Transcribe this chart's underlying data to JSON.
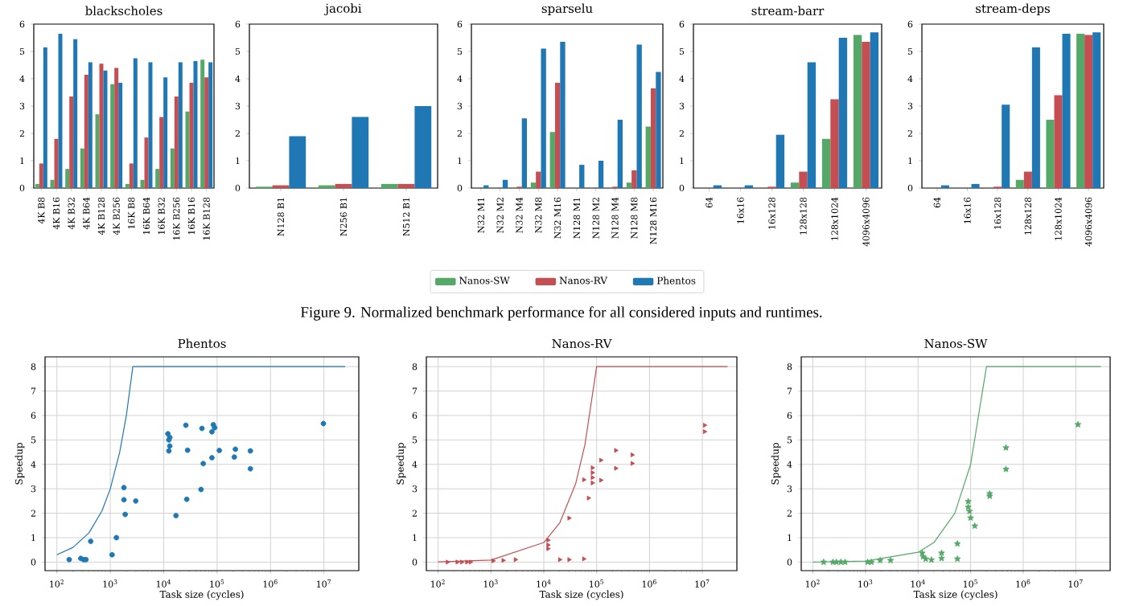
{
  "chart_data": [
    {
      "type": "bar",
      "title": "blackscholes",
      "categories": [
        "4K B8",
        "4K B16",
        "4K B32",
        "4K B64",
        "4K B128",
        "4K B256",
        "16K B8",
        "16K B64",
        "16K B32",
        "16K B256",
        "16K B16",
        "16K B128"
      ],
      "ylim": [
        0,
        6
      ],
      "yticks": [
        0,
        1,
        2,
        3,
        4,
        5,
        6
      ],
      "series": [
        {
          "color": "#55a868",
          "values": [
            0.15,
            0.3,
            0.7,
            1.45,
            2.7,
            3.8,
            0.15,
            0.3,
            0.7,
            1.45,
            2.8,
            4.7
          ]
        },
        {
          "color": "#c44e52",
          "values": [
            0.9,
            1.8,
            3.35,
            4.15,
            4.55,
            4.4,
            0.9,
            1.85,
            2.6,
            3.35,
            3.85,
            4.05
          ]
        },
        {
          "color": "#1f77b4",
          "values": [
            5.15,
            5.65,
            5.45,
            4.6,
            4.3,
            3.85,
            4.75,
            4.6,
            4.05,
            4.6,
            4.65,
            4.6
          ]
        }
      ]
    },
    {
      "type": "bar",
      "title": "jacobi",
      "categories": [
        "N128 B1",
        "N256 B1",
        "N512 B1"
      ],
      "ylim": [
        0,
        6
      ],
      "yticks": [
        0,
        1,
        2,
        3,
        4,
        5,
        6
      ],
      "series": [
        {
          "color": "#55a868",
          "values": [
            0.05,
            0.1,
            0.15
          ]
        },
        {
          "color": "#c44e52",
          "values": [
            0.1,
            0.15,
            0.15
          ]
        },
        {
          "color": "#1f77b4",
          "values": [
            1.9,
            2.6,
            3.0
          ]
        }
      ]
    },
    {
      "type": "bar",
      "title": "sparselu",
      "categories": [
        "N32 M1",
        "N32 M2",
        "N32 M4",
        "N32 M8",
        "N32 M16",
        "N128 M1",
        "N128 M2",
        "N128 M4",
        "N128 M8",
        "N128 M16"
      ],
      "ylim": [
        0,
        6
      ],
      "yticks": [
        0,
        1,
        2,
        3,
        4,
        5,
        6
      ],
      "legend": "bottom",
      "annotations": [
        "Figure 9.  Normalized benchmark performance for all considered inputs and runtimes."
      ],
      "series": [
        {
          "name": "Nanos-SW",
          "color": "#55a868",
          "values": [
            0,
            0,
            0,
            0.2,
            2.05,
            0,
            0,
            0,
            0.2,
            2.25
          ]
        },
        {
          "name": "Nanos-RV",
          "color": "#c44e52",
          "values": [
            0,
            0,
            0.05,
            0.6,
            3.85,
            0,
            0,
            0.05,
            0.65,
            3.65
          ]
        },
        {
          "name": "Phentos",
          "color": "#1f77b4",
          "values": [
            0.1,
            0.3,
            2.55,
            5.1,
            5.35,
            0.85,
            1.0,
            2.5,
            5.25,
            4.25
          ]
        }
      ]
    },
    {
      "type": "bar",
      "title": "stream-barr",
      "categories": [
        "64",
        "16x16",
        "16x128",
        "128x128",
        "128x1024",
        "4096x4096"
      ],
      "ylim": [
        0,
        6
      ],
      "yticks": [
        0,
        1,
        2,
        3,
        4,
        5,
        6
      ],
      "series": [
        {
          "color": "#55a868",
          "values": [
            0,
            0,
            0,
            0.2,
            1.8,
            5.6
          ]
        },
        {
          "color": "#c44e52",
          "values": [
            0,
            0,
            0.05,
            0.6,
            3.25,
            5.35
          ]
        },
        {
          "color": "#1f77b4",
          "values": [
            0.1,
            0.1,
            1.95,
            4.6,
            5.5,
            5.7
          ]
        }
      ]
    },
    {
      "type": "bar",
      "title": "stream-deps",
      "categories": [
        "64",
        "16x16",
        "16x128",
        "128x128",
        "128x1024",
        "4096x4096"
      ],
      "ylim": [
        0,
        6
      ],
      "yticks": [
        0,
        1,
        2,
        3,
        4,
        5,
        6
      ],
      "series": [
        {
          "color": "#55a868",
          "values": [
            0,
            0,
            0,
            0.3,
            2.5,
            5.65
          ]
        },
        {
          "color": "#c44e52",
          "values": [
            0,
            0,
            0.05,
            0.6,
            3.4,
            5.6
          ]
        },
        {
          "color": "#1f77b4",
          "values": [
            0.1,
            0.15,
            3.05,
            5.15,
            5.65,
            5.7
          ]
        }
      ]
    },
    {
      "type": "scatter",
      "title": "Phentos",
      "xlabel": "Task size (cycles)",
      "ylabel": "Speedup",
      "log": "x",
      "grid": true,
      "xlim": [
        60,
        45000000
      ],
      "ylim": [
        -0.35,
        8.4
      ],
      "yticks": [
        0,
        1,
        2,
        3,
        4,
        5,
        6,
        7,
        8
      ],
      "xticks": [
        {
          "value": 100,
          "label": "10$^{2}$"
        },
        {
          "value": 1000,
          "label": "10$^{3}$"
        },
        {
          "value": 10000,
          "label": "10$^{4}$"
        },
        {
          "value": 100000,
          "label": "10$^{5}$"
        },
        {
          "value": 1000000,
          "label": "10$^{6}$"
        },
        {
          "value": 10000000,
          "label": "10$^{7}$"
        }
      ],
      "series": [
        {
          "color": "#1f77b4",
          "marker": "circle",
          "x": [
            170,
            280,
            316,
            350,
            430,
            1080,
            1300,
            1800,
            1800,
            1900,
            3000,
            12000,
            12500,
            13000,
            12500,
            13000,
            17000,
            26000,
            28000,
            27000,
            52000,
            55000,
            50000,
            80000,
            85000,
            90000,
            80000,
            110000,
            210000,
            220000,
            420000,
            420000,
            9800000
          ],
          "values": [
            0.1,
            0.15,
            0.1,
            0.1,
            0.85,
            0.3,
            1.0,
            3.05,
            2.55,
            1.95,
            2.5,
            5.25,
            5.0,
            5.1,
            4.55,
            4.75,
            1.9,
            5.6,
            4.58,
            2.57,
            5.47,
            4.03,
            2.97,
            5.33,
            5.62,
            5.5,
            4.27,
            4.57,
            4.3,
            4.62,
            4.55,
            3.82,
            5.67
          ]
        },
        {
          "type": "line",
          "color": "#1f77b4",
          "x": [
            100,
            200,
            400,
            700,
            1000,
            1500,
            2000,
            2640,
            25000000
          ],
          "values": [
            0.3,
            0.6,
            1.2,
            2.1,
            3.0,
            4.5,
            6.0,
            8.0,
            8.0
          ]
        }
      ]
    },
    {
      "type": "scatter",
      "title": "Nanos-RV",
      "xlabel": "Task size (cycles)",
      "ylabel": "Speedup",
      "log": "x",
      "grid": true,
      "xlim": [
        60,
        45000000
      ],
      "ylim": [
        -0.35,
        8.4
      ],
      "yticks": [
        0,
        1,
        2,
        3,
        4,
        5,
        6,
        7,
        8
      ],
      "xticks": [
        {
          "value": 100,
          "label": "10$^{2}$"
        },
        {
          "value": 1000,
          "label": "10$^{3}$"
        },
        {
          "value": 10000,
          "label": "10$^{4}$"
        },
        {
          "value": 100000,
          "label": "10$^{5}$"
        },
        {
          "value": 1000000,
          "label": "10$^{6}$"
        },
        {
          "value": 10000000,
          "label": "10$^{7}$"
        }
      ],
      "series": [
        {
          "color": "#c44e52",
          "marker": "triangle",
          "x": [
            150,
            230,
            280,
            350,
            410,
            1100,
            1700,
            2900,
            12000,
            12000,
            12000,
            20000,
            30000,
            30000,
            57000,
            57000,
            70000,
            83000,
            83000,
            83000,
            83000,
            120000,
            120000,
            230000,
            230000,
            470000,
            470000,
            11000000,
            11000000
          ],
          "values": [
            0,
            0,
            0,
            0,
            0,
            0.05,
            0.07,
            0.1,
            0.7,
            0.9,
            0.55,
            0.1,
            1.8,
            0.1,
            0.13,
            3.37,
            2.62,
            3.86,
            3.66,
            3.24,
            3.46,
            3.35,
            4.17,
            4.57,
            3.84,
            4.39,
            4.04,
            5.34,
            5.6
          ]
        },
        {
          "type": "line",
          "color": "#c44e52",
          "x": [
            100,
            1000,
            10000,
            20000,
            40000,
            60000,
            100000,
            30000000
          ],
          "values": [
            0.01,
            0.08,
            0.8,
            1.6,
            3.2,
            4.8,
            8.0,
            8.0
          ]
        }
      ]
    },
    {
      "type": "scatter",
      "title": "Nanos-SW",
      "xlabel": "Task size (cycles)",
      "ylabel": "Speedup",
      "log": "x",
      "grid": true,
      "xlim": [
        60,
        45000000
      ],
      "ylim": [
        -0.35,
        8.4
      ],
      "yticks": [
        0,
        1,
        2,
        3,
        4,
        5,
        6,
        7,
        8
      ],
      "xticks": [
        {
          "value": 100,
          "label": "10$^{2}$"
        },
        {
          "value": 1000,
          "label": "10$^{3}$"
        },
        {
          "value": 10000,
          "label": "10$^{4}$"
        },
        {
          "value": 100000,
          "label": "10$^{5}$"
        },
        {
          "value": 1000000,
          "label": "10$^{6}$"
        },
        {
          "value": 10000000,
          "label": "10$^{7}$"
        }
      ],
      "series": [
        {
          "color": "#55a868",
          "marker": "star",
          "x": [
            160,
            240,
            280,
            340,
            410,
            1100,
            1300,
            1900,
            3000,
            12000,
            12500,
            14000,
            18000,
            28000,
            28000,
            56000,
            56000,
            90000,
            90000,
            95000,
            100000,
            120000,
            230000,
            230000,
            470000,
            470000,
            11000000
          ],
          "values": [
            0,
            0,
            0,
            0,
            0,
            0,
            0,
            0.07,
            0.07,
            0.37,
            0.22,
            0.13,
            0.09,
            0.37,
            0.15,
            0.75,
            0.13,
            2.48,
            2.25,
            2.08,
            1.81,
            1.48,
            2.8,
            2.7,
            4.68,
            3.8,
            5.63
          ]
        },
        {
          "type": "line",
          "color": "#55a868",
          "x": [
            100,
            1000,
            10000,
            20000,
            50000,
            100000,
            200000,
            30000000
          ],
          "values": [
            0,
            0.04,
            0.4,
            0.8,
            2.0,
            4.0,
            8.0,
            8.0
          ]
        }
      ]
    }
  ]
}
